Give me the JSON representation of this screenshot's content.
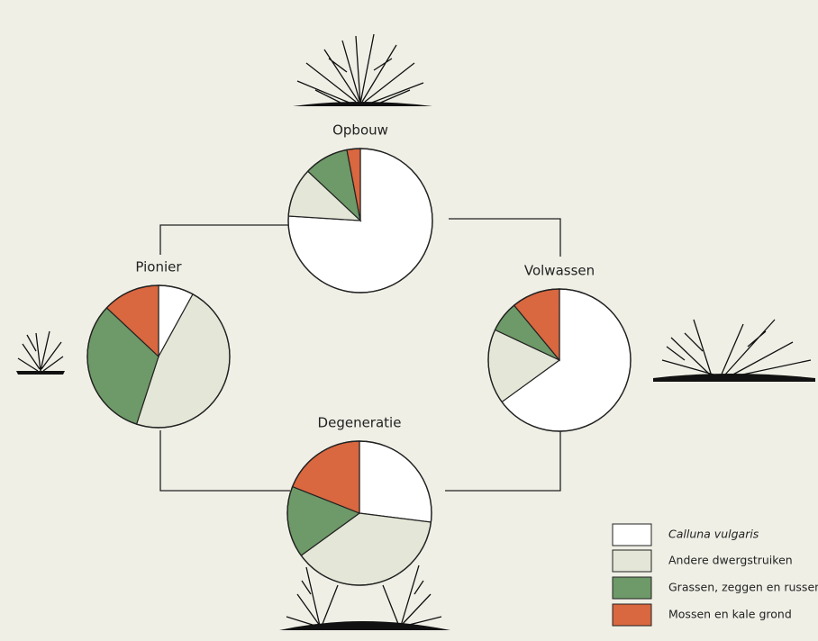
{
  "chart_data": [
    {
      "type": "pie",
      "title": "Opbouw",
      "categories": [
        "Calluna vulgaris",
        "Andere dwergstruiken",
        "Grassen, zeggen en russen",
        "Mossen en kale grond"
      ],
      "values": [
        76,
        11,
        10,
        3
      ],
      "colors": [
        "#ffffff",
        "#e4e7d7",
        "#6e9968",
        "#d9673f"
      ]
    },
    {
      "type": "pie",
      "title": "Pionier",
      "categories": [
        "Calluna vulgaris",
        "Andere dwergstruiken",
        "Grassen, zeggen en russen",
        "Mossen en kale grond"
      ],
      "values": [
        8,
        47,
        32,
        13
      ],
      "colors": [
        "#ffffff",
        "#e4e7d7",
        "#6e9968",
        "#d9673f"
      ]
    },
    {
      "type": "pie",
      "title": "Volwassen",
      "categories": [
        "Calluna vulgaris",
        "Andere dwergstruiken",
        "Grassen, zeggen en russen",
        "Mossen en kale grond"
      ],
      "values": [
        65,
        17,
        7,
        11
      ],
      "colors": [
        "#ffffff",
        "#e4e7d7",
        "#6e9968",
        "#d9673f"
      ]
    },
    {
      "type": "pie",
      "title": "Degeneratie",
      "categories": [
        "Calluna vulgaris",
        "Andere dwergstruiken",
        "Grassen, zeggen en russen",
        "Mossen en kale grond"
      ],
      "values": [
        27,
        38,
        16,
        19
      ],
      "colors": [
        "#ffffff",
        "#e4e7d7",
        "#6e9968",
        "#d9673f"
      ]
    }
  ]
}
